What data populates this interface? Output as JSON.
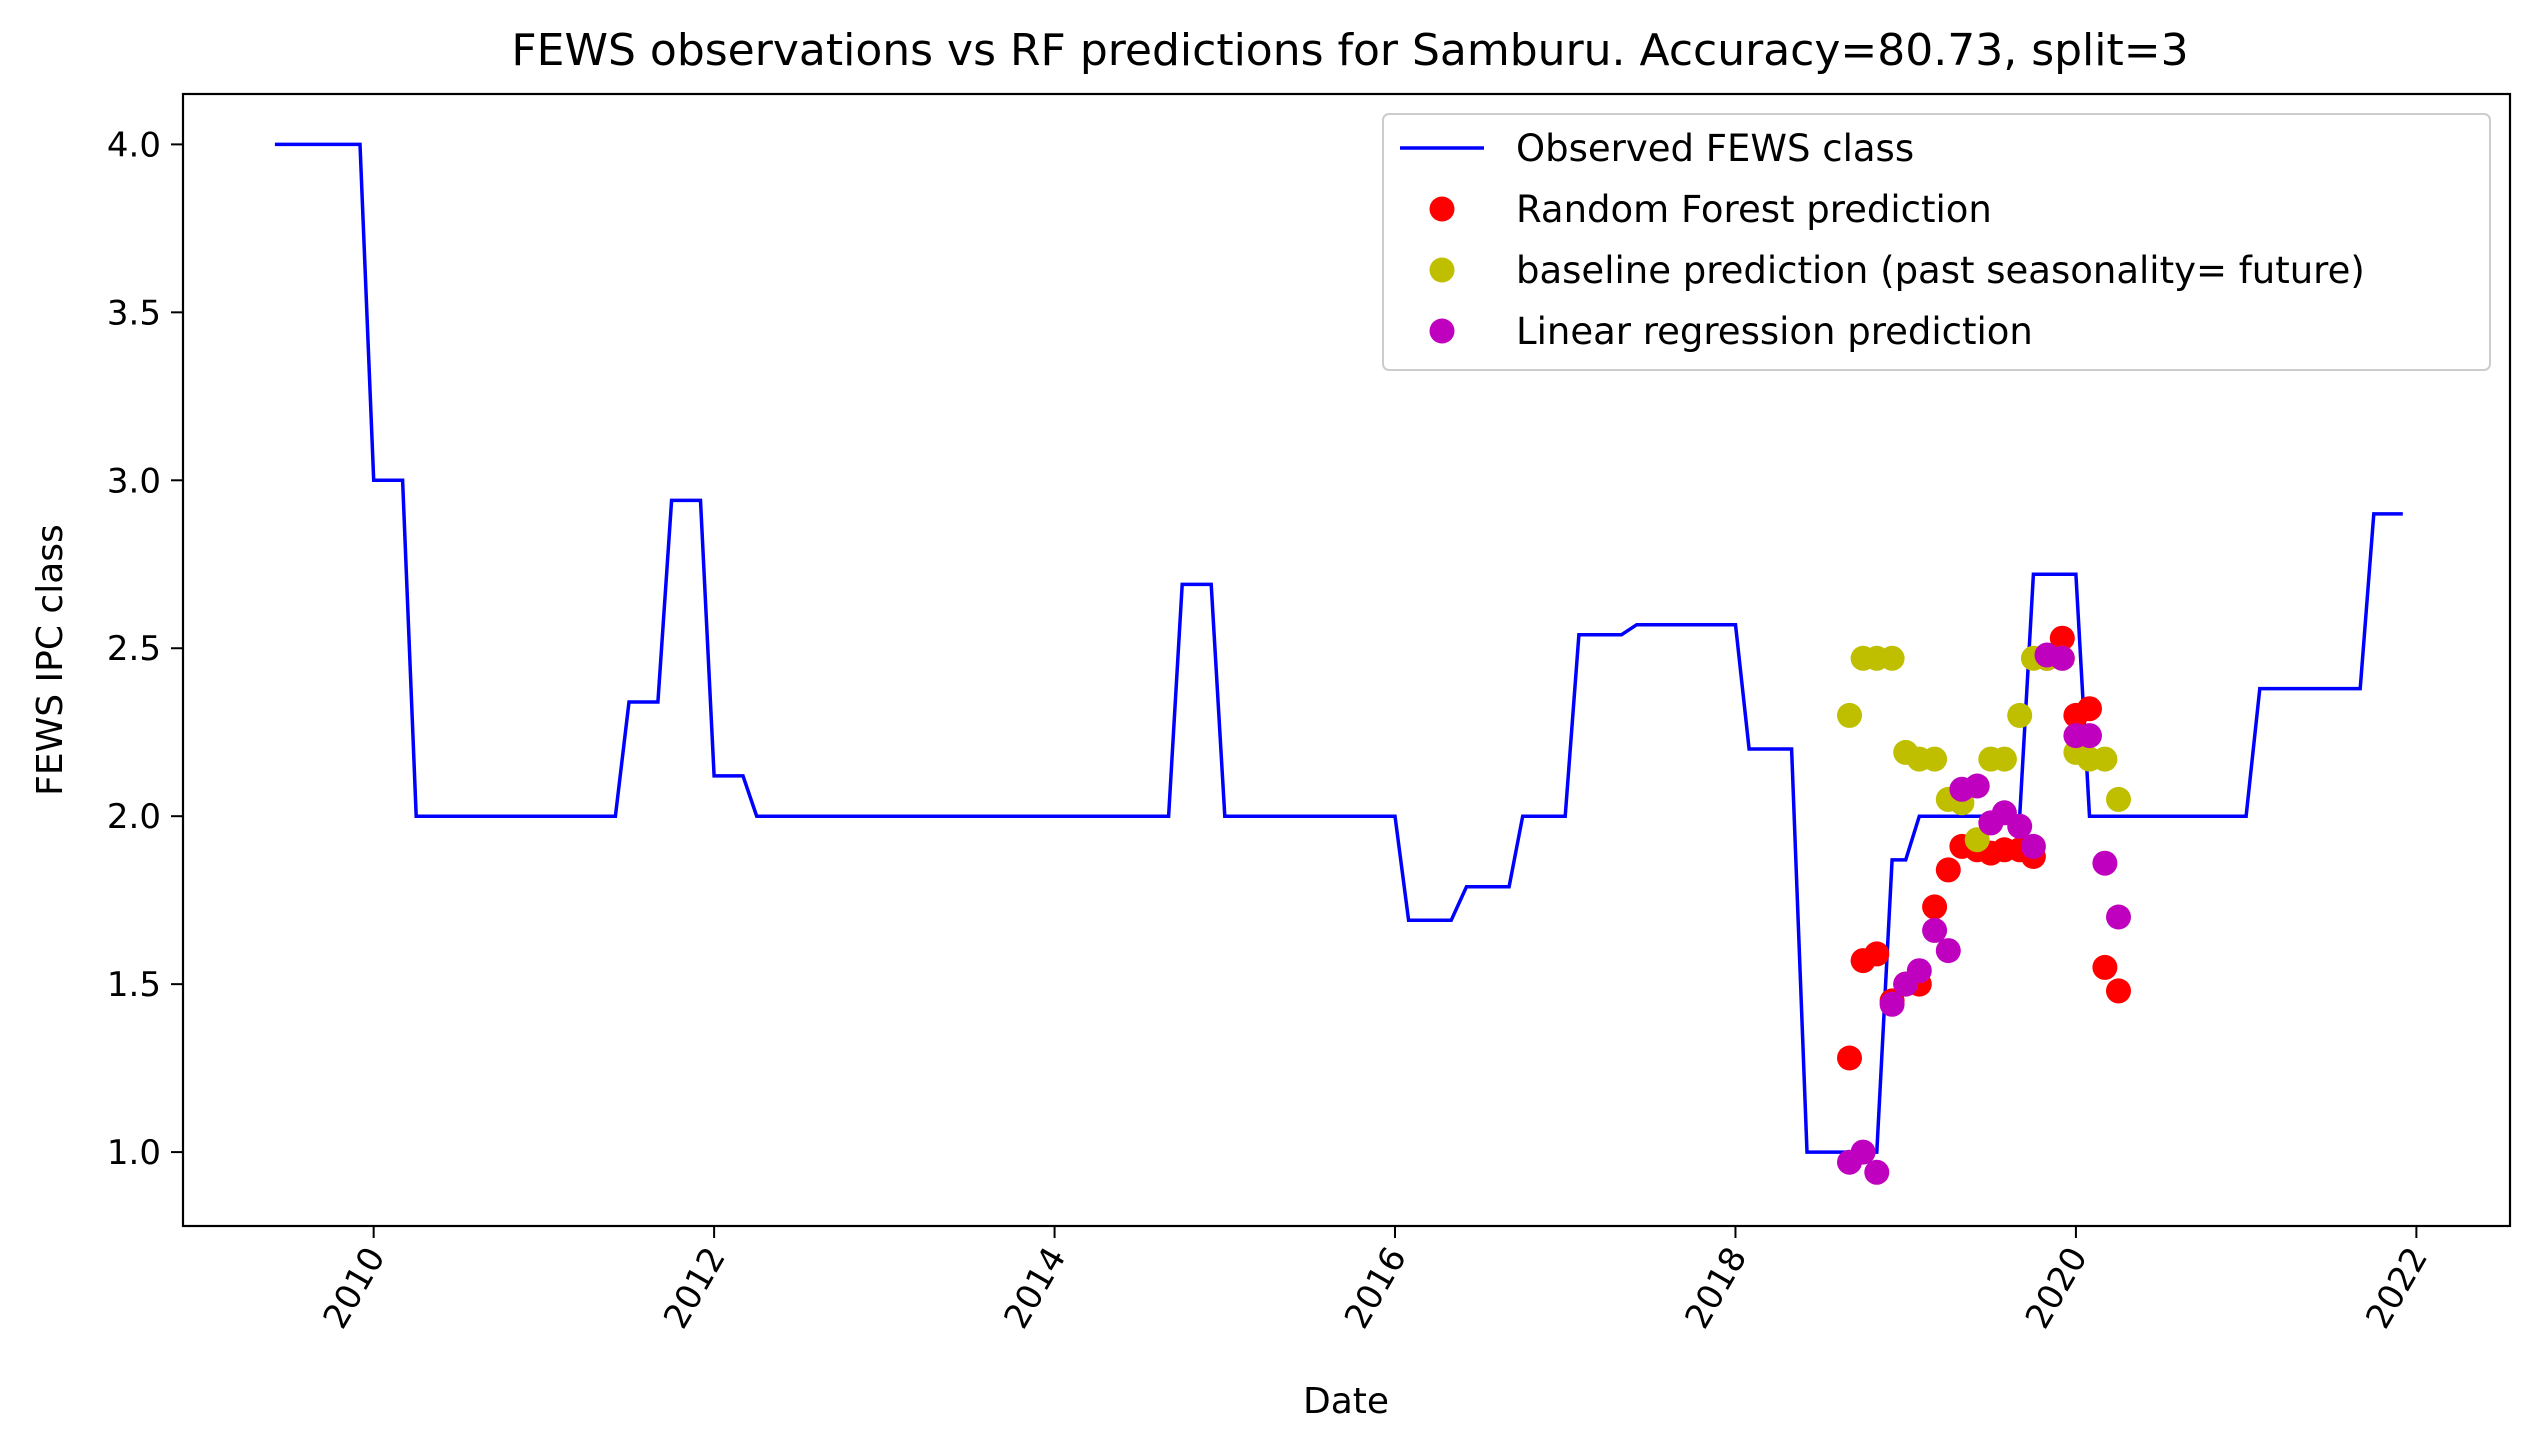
{
  "chart_data": {
    "type": "line",
    "title": "FEWS observations vs RF predictions for Samburu. Accuracy=80.73, split=3",
    "xlabel": "Date",
    "ylabel": "FEWS IPC class",
    "x_unit": "year (decimal)",
    "xlim": [
      2008.88,
      2022.55
    ],
    "ylim": [
      0.78,
      4.15
    ],
    "xticks": [
      2010,
      2012,
      2014,
      2016,
      2018,
      2020,
      2022
    ],
    "yticks": [
      1.0,
      1.5,
      2.0,
      2.5,
      3.0,
      3.5,
      4.0
    ],
    "grid": false,
    "legend_position": "top-right",
    "series": [
      {
        "name": "Observed FEWS class",
        "kind": "line",
        "color": "#0000ff",
        "x": [
          2009.42,
          2009.92,
          2010.0,
          2010.17,
          2010.25,
          2011.42,
          2011.5,
          2011.67,
          2011.75,
          2011.92,
          2012.0,
          2012.17,
          2012.25,
          2014.67,
          2014.75,
          2014.92,
          2015.0,
          2016.0,
          2016.08,
          2016.33,
          2016.42,
          2016.67,
          2016.75,
          2017.0,
          2017.08,
          2017.33,
          2017.42,
          2018.0,
          2018.08,
          2018.33,
          2018.42,
          2018.83,
          2018.92,
          2019.0,
          2019.08,
          2019.67,
          2019.75,
          2020.0,
          2020.08,
          2020.83,
          2020.92,
          2021.0,
          2021.08,
          2021.67,
          2021.75,
          2021.92
        ],
        "y": [
          4.0,
          4.0,
          3.0,
          3.0,
          2.0,
          2.0,
          2.34,
          2.34,
          2.94,
          2.94,
          2.12,
          2.12,
          2.0,
          2.0,
          2.69,
          2.69,
          2.0,
          2.0,
          1.69,
          1.69,
          1.79,
          1.79,
          2.0,
          2.0,
          2.54,
          2.54,
          2.57,
          2.57,
          2.2,
          2.2,
          1.0,
          1.0,
          1.87,
          1.87,
          2.0,
          2.0,
          2.72,
          2.72,
          2.0,
          2.0,
          2.0,
          2.0,
          2.38,
          2.38,
          2.9,
          2.9
        ]
      },
      {
        "name": "Random Forest prediction",
        "kind": "scatter",
        "color": "#ff0000",
        "x": [
          2018.67,
          2018.75,
          2018.83,
          2018.92,
          2019.0,
          2019.08,
          2019.17,
          2019.25,
          2019.33,
          2019.42,
          2019.5,
          2019.58,
          2019.67,
          2019.75,
          2019.83,
          2019.92,
          2020.0,
          2020.08,
          2020.17,
          2020.25
        ],
        "y": [
          1.28,
          1.57,
          1.59,
          1.45,
          1.5,
          1.5,
          1.73,
          1.84,
          1.91,
          1.9,
          1.89,
          1.9,
          1.9,
          1.88,
          2.47,
          2.53,
          2.3,
          2.32,
          1.55,
          1.48
        ]
      },
      {
        "name": "baseline prediction (past seasonality= future)",
        "kind": "scatter",
        "color": "#bfbf00",
        "x": [
          2018.67,
          2018.75,
          2018.83,
          2018.92,
          2019.0,
          2019.08,
          2019.17,
          2019.25,
          2019.33,
          2019.42,
          2019.5,
          2019.58,
          2019.67,
          2019.75,
          2019.83,
          2019.92,
          2020.0,
          2020.08,
          2020.17,
          2020.25
        ],
        "y": [
          2.3,
          2.47,
          2.47,
          2.47,
          2.19,
          2.17,
          2.17,
          2.05,
          2.04,
          1.93,
          2.17,
          2.17,
          2.3,
          2.47,
          2.47,
          2.47,
          2.19,
          2.17,
          2.17,
          2.05
        ]
      },
      {
        "name": "Linear regression prediction",
        "kind": "scatter",
        "color": "#bf00bf",
        "x": [
          2018.67,
          2018.75,
          2018.83,
          2018.92,
          2019.0,
          2019.08,
          2019.17,
          2019.25,
          2019.33,
          2019.42,
          2019.5,
          2019.58,
          2019.67,
          2019.75,
          2019.83,
          2019.92,
          2020.0,
          2020.08,
          2020.17,
          2020.25
        ],
        "y": [
          0.97,
          1.0,
          0.94,
          1.44,
          1.5,
          1.54,
          1.66,
          1.6,
          2.08,
          2.09,
          1.98,
          2.01,
          1.97,
          1.91,
          2.48,
          2.47,
          2.24,
          2.24,
          1.86,
          1.7
        ]
      }
    ]
  }
}
